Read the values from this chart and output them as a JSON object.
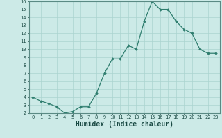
{
  "xlabel": "Humidex (Indice chaleur)",
  "x": [
    0,
    1,
    2,
    3,
    4,
    5,
    6,
    7,
    8,
    9,
    10,
    11,
    12,
    13,
    14,
    15,
    16,
    17,
    18,
    19,
    20,
    21,
    22,
    23
  ],
  "y": [
    4.0,
    3.5,
    3.2,
    2.8,
    2.0,
    2.2,
    2.8,
    2.8,
    4.5,
    7.0,
    8.8,
    8.8,
    10.5,
    10.0,
    13.5,
    16.0,
    15.0,
    15.0,
    13.5,
    12.5,
    12.0,
    10.0,
    9.5,
    9.5
  ],
  "ylim": [
    2,
    16
  ],
  "xlim_min": -0.5,
  "xlim_max": 23.5,
  "yticks": [
    2,
    3,
    4,
    5,
    6,
    7,
    8,
    9,
    10,
    11,
    12,
    13,
    14,
    15,
    16
  ],
  "xticks": [
    0,
    1,
    2,
    3,
    4,
    5,
    6,
    7,
    8,
    9,
    10,
    11,
    12,
    13,
    14,
    15,
    16,
    17,
    18,
    19,
    20,
    21,
    22,
    23
  ],
  "line_color": "#2e7d6e",
  "marker": "D",
  "marker_size": 1.8,
  "bg_color": "#cceae7",
  "grid_color": "#aad4cf",
  "axes_color": "#5a8a84",
  "tick_color": "#1a4a44",
  "label_fontsize": 6.5,
  "tick_fontsize": 5.0,
  "xlabel_fontsize": 7.0
}
